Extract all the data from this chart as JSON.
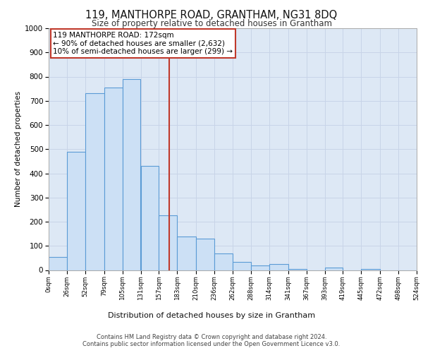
{
  "title": "119, MANTHORPE ROAD, GRANTHAM, NG31 8DQ",
  "subtitle": "Size of property relative to detached houses in Grantham",
  "xlabel": "Distribution of detached houses by size in Grantham",
  "ylabel": "Number of detached properties",
  "footer_line1": "Contains HM Land Registry data © Crown copyright and database right 2024.",
  "footer_line2": "Contains public sector information licensed under the Open Government Licence v3.0.",
  "annotation_line1": "119 MANTHORPE ROAD: 172sqm",
  "annotation_line2": "← 90% of detached houses are smaller (2,632)",
  "annotation_line3": "10% of semi-detached houses are larger (299) →",
  "property_size": 172,
  "bin_edges": [
    0,
    26,
    52,
    79,
    105,
    131,
    157,
    183,
    210,
    236,
    262,
    288,
    314,
    341,
    367,
    393,
    419,
    445,
    472,
    498,
    524
  ],
  "bar_heights": [
    55,
    490,
    730,
    755,
    790,
    430,
    225,
    140,
    130,
    70,
    35,
    20,
    25,
    5,
    0,
    10,
    0,
    5,
    0,
    0
  ],
  "bar_color": "#cce0f5",
  "bar_edge_color": "#5b9bd5",
  "vline_color": "#c0392b",
  "annotation_box_color": "#c0392b",
  "grid_color": "#c8d4e8",
  "background_color": "#dde8f5",
  "ylim": [
    0,
    1000
  ],
  "yticks": [
    0,
    100,
    200,
    300,
    400,
    500,
    600,
    700,
    800,
    900,
    1000
  ]
}
